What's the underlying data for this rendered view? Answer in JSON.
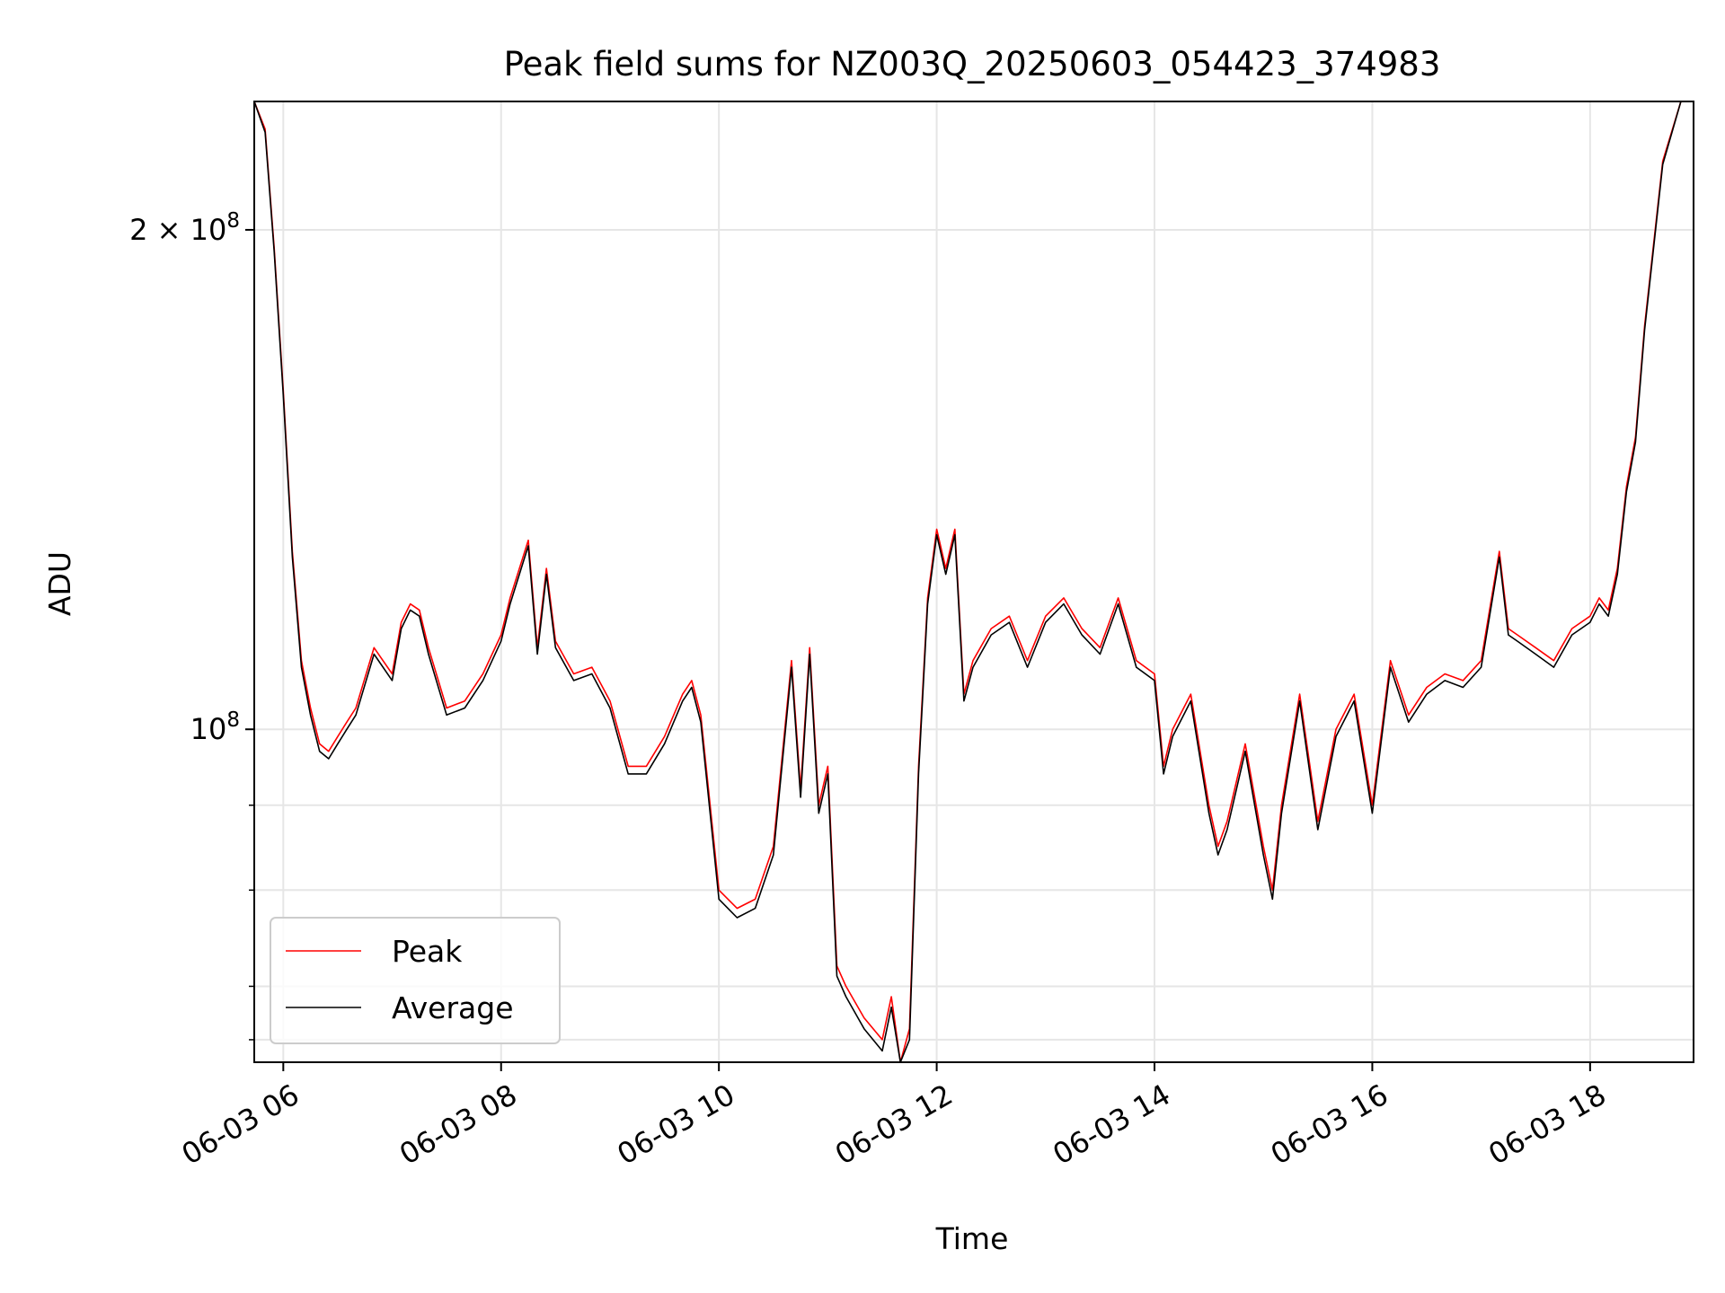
{
  "chart_data": {
    "type": "line",
    "title": "Peak field sums for NZ003Q_20250603_054423_374983",
    "xlabel": "Time",
    "ylabel": "ADU",
    "y_scale": "log",
    "grid": true,
    "legend_location": "lower-left",
    "xlim": [
      "2025-06-03 05:44",
      "2025-06-03 18:57"
    ],
    "ylim": [
      63000000,
      239000000
    ],
    "x_ticks": [
      {
        "value": "2025-06-03 06:00",
        "label": "06-03 06"
      },
      {
        "value": "2025-06-03 08:00",
        "label": "06-03 08"
      },
      {
        "value": "2025-06-03 10:00",
        "label": "06-03 10"
      },
      {
        "value": "2025-06-03 12:00",
        "label": "06-03 12"
      },
      {
        "value": "2025-06-03 14:00",
        "label": "06-03 14"
      },
      {
        "value": "2025-06-03 16:00",
        "label": "06-03 16"
      },
      {
        "value": "2025-06-03 18:00",
        "label": "06-03 18"
      }
    ],
    "y_major_ticks": [
      {
        "value": 100000000,
        "label_base": "10",
        "label_exp": "8"
      },
      {
        "value": 200000000,
        "label_base": "2 × 10",
        "label_exp": "8"
      }
    ],
    "y_minor_ticks": [
      65000000,
      70000000,
      80000000,
      90000000
    ],
    "x": [
      "05:44",
      "05:50",
      "05:55",
      "06:00",
      "06:05",
      "06:10",
      "06:15",
      "06:20",
      "06:25",
      "06:30",
      "06:35",
      "06:40",
      "06:50",
      "07:00",
      "07:05",
      "07:10",
      "07:15",
      "07:20",
      "07:30",
      "07:40",
      "07:50",
      "08:00",
      "08:05",
      "08:15",
      "08:20",
      "08:25",
      "08:30",
      "08:40",
      "08:50",
      "09:00",
      "09:10",
      "09:15",
      "09:20",
      "09:30",
      "09:40",
      "09:45",
      "09:50",
      "10:00",
      "10:10",
      "10:20",
      "10:30",
      "10:40",
      "10:45",
      "10:50",
      "10:55",
      "11:00",
      "11:05",
      "11:10",
      "11:20",
      "11:30",
      "11:35",
      "11:40",
      "11:45",
      "11:50",
      "11:55",
      "12:00",
      "12:05",
      "12:10",
      "12:15",
      "12:20",
      "12:30",
      "12:40",
      "12:50",
      "13:00",
      "13:10",
      "13:20",
      "13:30",
      "13:40",
      "13:50",
      "14:00",
      "14:05",
      "14:10",
      "14:20",
      "14:30",
      "14:35",
      "14:40",
      "14:50",
      "15:00",
      "15:05",
      "15:10",
      "15:20",
      "15:30",
      "15:40",
      "15:50",
      "16:00",
      "16:10",
      "16:20",
      "16:30",
      "16:40",
      "16:50",
      "17:00",
      "17:10",
      "17:15",
      "17:20",
      "17:30",
      "17:40",
      "17:50",
      "18:00",
      "18:05",
      "18:10",
      "18:15",
      "18:20",
      "18:25",
      "18:30",
      "18:40",
      "18:50",
      "18:57"
    ],
    "series": [
      {
        "name": "Peak",
        "color": "#ff0000",
        "values": [
          239000000,
          230000000,
          195000000,
          160000000,
          128000000,
          110000000,
          103000000,
          98000000,
          97000000,
          99000000,
          101000000,
          103000000,
          112000000,
          108000000,
          116000000,
          119000000,
          118000000,
          112000000,
          103000000,
          104000000,
          108000000,
          114000000,
          120000000,
          130000000,
          112000000,
          125000000,
          113000000,
          108000000,
          109000000,
          104000000,
          95000000,
          95000000,
          95000000,
          99000000,
          105000000,
          107000000,
          102000000,
          80000000,
          78000000,
          79000000,
          85000000,
          110000000,
          92000000,
          112000000,
          90000000,
          95000000,
          72000000,
          70000000,
          67000000,
          65000000,
          69000000,
          63000000,
          66000000,
          95000000,
          120000000,
          132000000,
          125000000,
          132000000,
          105000000,
          110000000,
          115000000,
          117000000,
          110000000,
          117000000,
          120000000,
          115000000,
          112000000,
          120000000,
          110000000,
          108000000,
          95000000,
          100000000,
          105000000,
          90000000,
          85000000,
          88000000,
          98000000,
          85000000,
          80000000,
          90000000,
          105000000,
          88000000,
          100000000,
          105000000,
          90000000,
          110000000,
          102000000,
          106000000,
          108000000,
          107000000,
          110000000,
          128000000,
          115000000,
          114000000,
          112000000,
          110000000,
          115000000,
          117000000,
          120000000,
          118000000,
          125000000,
          140000000,
          150000000,
          175000000,
          220000000,
          239000000,
          239000000
        ]
      },
      {
        "name": "Average",
        "color": "#000000",
        "values": [
          239000000,
          229000000,
          194000000,
          159000000,
          127000000,
          109000000,
          102000000,
          97000000,
          96000000,
          98000000,
          100000000,
          102000000,
          111000000,
          107000000,
          115000000,
          118000000,
          117000000,
          111000000,
          102000000,
          103000000,
          107000000,
          113000000,
          119000000,
          129000000,
          111000000,
          124000000,
          112000000,
          107000000,
          108000000,
          103000000,
          94000000,
          94000000,
          94000000,
          98000000,
          104000000,
          106000000,
          101000000,
          79000000,
          77000000,
          78000000,
          84000000,
          109000000,
          91000000,
          111000000,
          89000000,
          94000000,
          71000000,
          69000000,
          66000000,
          64000000,
          68000000,
          63000000,
          65000000,
          94000000,
          119000000,
          131000000,
          124000000,
          131000000,
          104000000,
          109000000,
          114000000,
          116000000,
          109000000,
          116000000,
          119000000,
          114000000,
          111000000,
          119000000,
          109000000,
          107000000,
          94000000,
          99000000,
          104000000,
          89000000,
          84000000,
          87000000,
          97000000,
          84000000,
          79000000,
          89000000,
          104000000,
          87000000,
          99000000,
          104000000,
          89000000,
          109000000,
          101000000,
          105000000,
          107000000,
          106000000,
          109000000,
          127000000,
          114000000,
          113000000,
          111000000,
          109000000,
          114000000,
          116000000,
          119000000,
          117000000,
          124000000,
          139000000,
          149000000,
          174000000,
          219000000,
          239000000,
          239000000
        ]
      }
    ]
  }
}
